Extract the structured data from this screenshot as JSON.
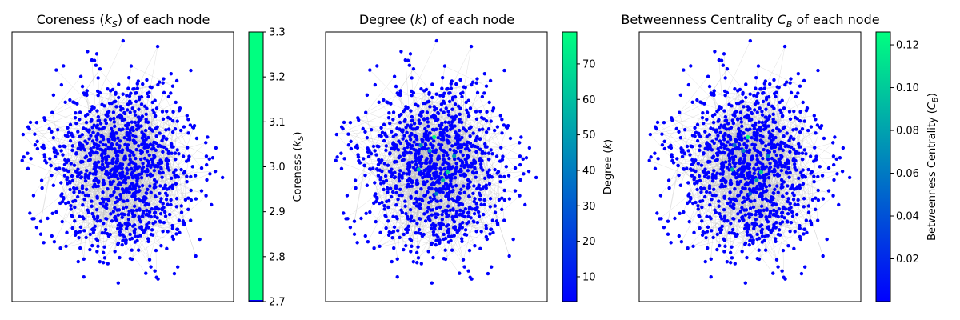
{
  "chart_data": [
    {
      "type": "network",
      "title_pre": "Coreness (",
      "title_math": "k",
      "title_sub": "S",
      "title_post": ") of each node",
      "colorbar": {
        "label_pre": "Coreness (",
        "label_math": "k",
        "label_sub": "S",
        "label_post": ")",
        "colormap": "winter",
        "range": [
          2.7,
          3.3
        ],
        "ticks": [
          "2.7",
          "2.8",
          "2.9",
          "3.0",
          "3.1",
          "3.2",
          "3.3"
        ],
        "tick_values": [
          2.7,
          2.8,
          2.9,
          3.0,
          3.1,
          3.2,
          3.3
        ]
      },
      "node_value_summary": "all nodes have coreness 3",
      "hubs": []
    },
    {
      "type": "network",
      "title_pre": "Degree (",
      "title_math": "k",
      "title_sub": "",
      "title_post": ") of each node",
      "colorbar": {
        "label_pre": "Degree (",
        "label_math": "k",
        "label_sub": "",
        "label_post": ")",
        "colormap": "winter",
        "range": [
          3,
          79
        ],
        "ticks": [
          "10",
          "20",
          "30",
          "40",
          "50",
          "60",
          "70"
        ],
        "tick_values": [
          10,
          20,
          30,
          40,
          50,
          60,
          70
        ]
      },
      "node_value_summary": "most nodes have low degree; a few central hubs reach high degree",
      "hubs": [
        {
          "value": 78
        },
        {
          "value": 65
        },
        {
          "value": 58
        },
        {
          "value": 55
        },
        {
          "value": 50
        },
        {
          "value": 47
        },
        {
          "value": 44
        },
        {
          "value": 40
        }
      ]
    },
    {
      "type": "network",
      "title_pre": "Betweenness Centrality ",
      "title_math": "C",
      "title_sub": "B",
      "title_post": " of each node",
      "colorbar": {
        "label_pre": "Betweenness Centrality (",
        "label_math": "C",
        "label_sub": "B",
        "label_post": ")",
        "colormap": "winter",
        "range": [
          0,
          0.126
        ],
        "ticks": [
          "0.02",
          "0.04",
          "0.06",
          "0.08",
          "0.10",
          "0.12"
        ],
        "tick_values": [
          0.02,
          0.04,
          0.06,
          0.08,
          0.1,
          0.12
        ]
      },
      "node_value_summary": "most nodes near zero; a few central hubs have high betweenness",
      "hubs": [
        {
          "value": 0.12
        },
        {
          "value": 0.1
        },
        {
          "value": 0.085
        },
        {
          "value": 0.075
        },
        {
          "value": 0.065
        },
        {
          "value": 0.06
        },
        {
          "value": 0.05
        },
        {
          "value": 0.045
        }
      ]
    }
  ]
}
